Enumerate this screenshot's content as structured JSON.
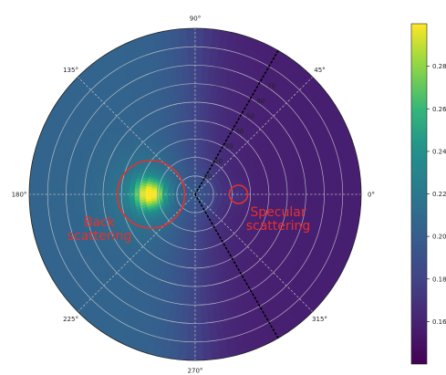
{
  "chart_data": {
    "type": "heatmap",
    "projection": "polar",
    "colormap": "viridis",
    "value_range": [
      0.14,
      0.3
    ],
    "colorbar": {
      "ticks": [
        0.16,
        0.18,
        0.2,
        0.22,
        0.24,
        0.26,
        0.28
      ],
      "tick_labels": [
        "0.16",
        "0.18",
        "0.20",
        "0.22",
        "0.24",
        "0.26",
        "0.28"
      ]
    },
    "angular_ticks": [
      0,
      45,
      90,
      135,
      180,
      225,
      270,
      315
    ],
    "angular_tick_labels": [
      "0°",
      "45°",
      "90°",
      "135°",
      "180°",
      "225°",
      "270°",
      "315°"
    ],
    "radial_ticks": [
      10,
      20,
      30,
      40,
      50,
      60,
      70
    ],
    "radial_tick_labels": [
      "10",
      "20",
      "30",
      "40",
      "50",
      "60",
      "70"
    ],
    "r_max": 90,
    "grid": true,
    "background_field": {
      "description_values": "reflectance field approx 0.18-0.21 on the left half, 0.15-0.17 on the right half",
      "left_level": 0.205,
      "right_level": 0.158,
      "center_level": 0.19
    },
    "hotspots": [
      {
        "name": "",
        "azimuth_deg": 180,
        "zenith_deg": 25,
        "peak_value": 0.29
      },
      {
        "name": "",
        "azimuth_deg": 0,
        "zenith_deg": 22,
        "peak_value": 0.17
      }
    ],
    "reference_lines": [
      {
        "azimuth_deg": 60,
        "style": "dotted",
        "color": "#000000",
        "radial_labels": true
      },
      {
        "azimuth_deg": 300,
        "style": "dotted",
        "color": "#000000",
        "radial_labels": false
      }
    ],
    "annotations": [
      {
        "text_lines": [
          "Back",
          "scattering"
        ],
        "color": "#e8302a",
        "target_azimuth_deg": 180,
        "target_zenith_deg": 25
      },
      {
        "text_lines": [
          "Specular",
          "scattering"
        ],
        "color": "#e8302a",
        "target_azimuth_deg": 0,
        "target_zenith_deg": 22
      }
    ]
  }
}
